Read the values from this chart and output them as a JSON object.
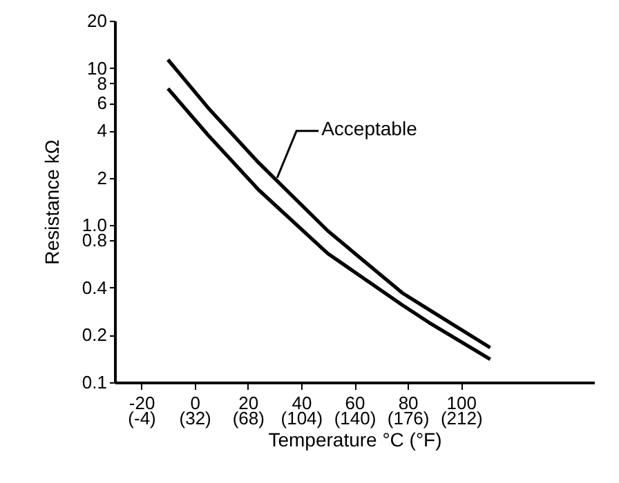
{
  "chart_data": {
    "type": "line",
    "xlabel": "Temperature °C (°F)",
    "ylabel": "Resistance  kΩ",
    "x": [
      -10,
      5,
      24,
      50,
      78,
      88,
      111
    ],
    "series": [
      {
        "color": "#000000",
        "values": [
          11.3,
          5.6,
          2.5,
          0.92,
          0.37,
          0.29,
          0.166
        ]
      },
      {
        "color": "#000000",
        "values": [
          7.4,
          3.75,
          1.68,
          0.66,
          0.31,
          0.24,
          0.14
        ]
      }
    ],
    "log": "y",
    "xlim": [
      -30,
      150
    ],
    "ylim": [
      0.1,
      20
    ],
    "xticks": [
      -20,
      0,
      20,
      40,
      60,
      80,
      100
    ],
    "x2lim": [
      -22,
      302
    ],
    "x2ticks": [
      {
        "value": -4,
        "label": "(-4)"
      },
      {
        "value": 32,
        "label": "(32)"
      },
      {
        "value": 68,
        "label": "(68)"
      },
      {
        "value": 104,
        "label": "(104)"
      },
      {
        "value": 140,
        "label": "(140)"
      },
      {
        "value": 176,
        "label": "(176)"
      },
      {
        "value": 212,
        "label": "(212)"
      }
    ],
    "yticks": [
      0.1,
      0.2,
      0.4,
      0.8,
      {
        "value": 1,
        "label": "1.0"
      },
      2,
      4,
      6,
      8,
      10,
      20
    ],
    "annotations": [
      {
        "text": "Acceptable",
        "x": 31,
        "y": 2.0
      }
    ],
    "grid": false,
    "marker": "none",
    "line_style": "solid"
  }
}
